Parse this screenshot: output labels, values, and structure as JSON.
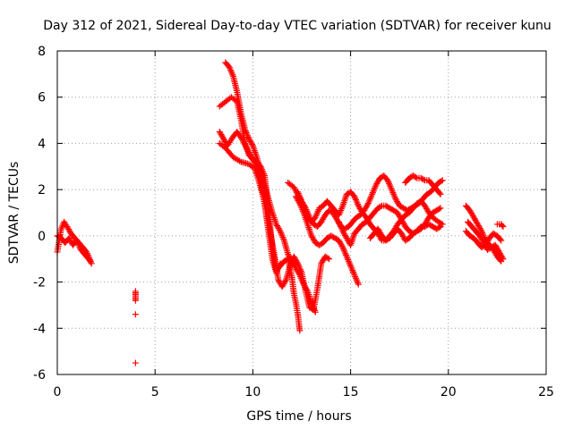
{
  "chart_data": {
    "type": "scatter",
    "title": "Day 312 of 2021, Sidereal Day-to-day VTEC variation (SDTVAR) for receiver kunu",
    "xlabel": "GPS time / hours",
    "ylabel": "SDTVAR / TECUs",
    "xlim": [
      0,
      25
    ],
    "ylim": [
      -6,
      8
    ],
    "xticks": [
      0,
      5,
      10,
      15,
      20,
      25
    ],
    "yticks": [
      -6,
      -4,
      -2,
      0,
      2,
      4,
      6,
      8
    ],
    "grid": true,
    "legend": "none",
    "marker": "+",
    "color": "#ff0000",
    "tracks": [
      [
        [
          0.0,
          -0.7
        ],
        [
          0.1,
          -0.2
        ],
        [
          0.2,
          0.3
        ],
        [
          0.35,
          0.6
        ],
        [
          0.5,
          0.4
        ],
        [
          0.7,
          0.1
        ],
        [
          0.9,
          -0.1
        ],
        [
          1.1,
          -0.3
        ],
        [
          1.3,
          -0.5
        ],
        [
          1.5,
          -0.7
        ],
        [
          1.7,
          -1.1
        ]
      ],
      [
        [
          0.0,
          0.0
        ],
        [
          0.2,
          -0.1
        ],
        [
          0.4,
          -0.3
        ],
        [
          0.6,
          -0.1
        ],
        [
          0.8,
          -0.4
        ],
        [
          1.0,
          -0.2
        ],
        [
          1.2,
          -0.6
        ],
        [
          1.4,
          -0.8
        ],
        [
          1.6,
          -1.0
        ],
        [
          1.75,
          -1.2
        ]
      ],
      [
        [
          4.0,
          -2.4
        ],
        [
          4.0,
          -2.6
        ],
        [
          4.0,
          -2.8
        ]
      ],
      [
        [
          4.0,
          -3.4
        ]
      ],
      [
        [
          4.0,
          -5.5
        ]
      ],
      [
        [
          8.6,
          7.5
        ],
        [
          8.8,
          7.3
        ],
        [
          9.0,
          6.9
        ],
        [
          9.2,
          6.2
        ],
        [
          9.4,
          5.3
        ],
        [
          9.6,
          4.6
        ],
        [
          9.8,
          4.2
        ],
        [
          10.0,
          3.9
        ],
        [
          10.2,
          3.4
        ],
        [
          10.4,
          2.8
        ],
        [
          10.6,
          2.2
        ],
        [
          10.8,
          1.6
        ],
        [
          11.0,
          1.0
        ],
        [
          11.2,
          0.5
        ],
        [
          11.4,
          0.2
        ],
        [
          11.6,
          -0.2
        ],
        [
          11.8,
          -0.8
        ],
        [
          12.0,
          -1.1
        ],
        [
          12.2,
          -1.4
        ],
        [
          12.4,
          -1.7
        ],
        [
          12.6,
          -2.1
        ],
        [
          12.8,
          -2.4
        ],
        [
          13.0,
          -2.9
        ],
        [
          13.2,
          -3.3
        ]
      ],
      [
        [
          8.3,
          5.6
        ],
        [
          8.6,
          5.8
        ],
        [
          8.9,
          6.0
        ],
        [
          9.2,
          5.8
        ],
        [
          9.4,
          5.0
        ],
        [
          9.6,
          4.0
        ],
        [
          9.8,
          3.5
        ],
        [
          10.0,
          3.3
        ],
        [
          10.2,
          3.2
        ],
        [
          10.4,
          3.0
        ],
        [
          10.6,
          2.6
        ],
        [
          10.8,
          1.2
        ],
        [
          11.0,
          -0.6
        ],
        [
          11.2,
          -1.5
        ],
        [
          11.4,
          -1.3
        ],
        [
          11.6,
          -1.1
        ],
        [
          11.8,
          -1.0
        ],
        [
          12.0,
          -1.8
        ],
        [
          12.1,
          -2.5
        ],
        [
          12.2,
          -2.9
        ],
        [
          12.3,
          -3.4
        ],
        [
          12.4,
          -4.1
        ]
      ],
      [
        [
          8.3,
          4.5
        ],
        [
          8.5,
          4.2
        ],
        [
          8.7,
          3.9
        ],
        [
          9.0,
          4.3
        ],
        [
          9.2,
          4.5
        ],
        [
          9.5,
          4.1
        ],
        [
          9.8,
          3.6
        ],
        [
          10.0,
          3.3
        ],
        [
          10.2,
          3.0
        ],
        [
          10.4,
          2.4
        ],
        [
          10.6,
          1.4
        ],
        [
          10.8,
          0.2
        ],
        [
          11.0,
          -1.0
        ],
        [
          11.2,
          -1.6
        ],
        [
          11.4,
          -1.2
        ]
      ],
      [
        [
          8.3,
          4.0
        ],
        [
          8.6,
          3.8
        ],
        [
          9.0,
          3.4
        ],
        [
          9.4,
          3.2
        ],
        [
          9.8,
          3.1
        ],
        [
          10.1,
          2.9
        ],
        [
          10.3,
          2.4
        ],
        [
          10.5,
          1.8
        ],
        [
          10.7,
          1.0
        ],
        [
          10.9,
          0.1
        ],
        [
          11.1,
          -0.8
        ],
        [
          11.3,
          -1.9
        ],
        [
          11.5,
          -2.2
        ],
        [
          11.7,
          -1.9
        ],
        [
          11.9,
          -1.3
        ],
        [
          12.1,
          -0.9
        ],
        [
          12.3,
          -1.2
        ],
        [
          12.5,
          -1.6
        ],
        [
          12.7,
          -2.4
        ],
        [
          12.9,
          -3.1
        ],
        [
          13.1,
          -3.2
        ],
        [
          13.3,
          -2.3
        ],
        [
          13.5,
          -1.2
        ],
        [
          13.7,
          -0.9
        ],
        [
          13.9,
          -1.0
        ]
      ],
      [
        [
          11.8,
          2.3
        ],
        [
          12.1,
          2.1
        ],
        [
          12.4,
          1.6
        ],
        [
          12.6,
          1.2
        ],
        [
          12.8,
          0.8
        ],
        [
          13.0,
          0.6
        ],
        [
          13.2,
          0.8
        ],
        [
          13.4,
          1.2
        ],
        [
          13.6,
          1.3
        ],
        [
          13.8,
          1.5
        ],
        [
          14.0,
          1.3
        ],
        [
          14.2,
          1.1
        ],
        [
          14.4,
          0.9
        ],
        [
          14.6,
          1.3
        ],
        [
          14.8,
          1.8
        ],
        [
          15.0,
          1.9
        ],
        [
          15.2,
          1.7
        ],
        [
          15.4,
          1.3
        ],
        [
          15.6,
          1.0
        ],
        [
          15.8,
          0.8
        ],
        [
          16.0,
          0.5
        ],
        [
          16.2,
          0.3
        ],
        [
          16.4,
          0.1
        ],
        [
          16.6,
          -0.2
        ],
        [
          16.8,
          -0.2
        ],
        [
          17.0,
          0.0
        ],
        [
          17.2,
          0.2
        ],
        [
          17.4,
          0.5
        ],
        [
          17.6,
          0.7
        ],
        [
          17.8,
          0.9
        ],
        [
          18.0,
          1.0
        ],
        [
          18.2,
          1.2
        ],
        [
          18.4,
          1.4
        ],
        [
          18.6,
          1.5
        ],
        [
          18.8,
          1.3
        ],
        [
          19.0,
          1.0
        ],
        [
          19.2,
          0.8
        ],
        [
          19.5,
          0.6
        ],
        [
          19.7,
          0.5
        ]
      ],
      [
        [
          12.3,
          1.9
        ],
        [
          12.5,
          1.5
        ],
        [
          12.7,
          1.2
        ],
        [
          12.9,
          0.8
        ],
        [
          13.1,
          0.5
        ],
        [
          13.3,
          0.4
        ],
        [
          13.5,
          0.6
        ],
        [
          13.7,
          0.9
        ],
        [
          13.9,
          1.1
        ],
        [
          14.1,
          1.0
        ],
        [
          14.3,
          0.7
        ],
        [
          14.5,
          0.4
        ],
        [
          14.7,
          0.3
        ],
        [
          14.9,
          0.4
        ],
        [
          15.1,
          0.6
        ],
        [
          15.3,
          0.8
        ],
        [
          15.5,
          0.9
        ],
        [
          15.7,
          1.1
        ],
        [
          15.9,
          1.4
        ],
        [
          16.1,
          1.8
        ],
        [
          16.3,
          2.2
        ],
        [
          16.5,
          2.5
        ],
        [
          16.7,
          2.6
        ],
        [
          16.9,
          2.4
        ],
        [
          17.1,
          2.0
        ],
        [
          17.3,
          1.6
        ],
        [
          17.5,
          1.3
        ],
        [
          17.7,
          1.2
        ],
        [
          17.9,
          1.1
        ],
        [
          18.1,
          1.2
        ],
        [
          18.3,
          1.3
        ],
        [
          18.5,
          1.4
        ],
        [
          18.7,
          1.6
        ],
        [
          18.9,
          1.8
        ],
        [
          19.1,
          1.9
        ],
        [
          19.3,
          2.1
        ],
        [
          19.5,
          2.3
        ],
        [
          19.7,
          2.4
        ]
      ],
      [
        [
          12.2,
          1.7
        ],
        [
          12.4,
          1.4
        ],
        [
          12.6,
          1.0
        ],
        [
          12.8,
          0.5
        ],
        [
          13.0,
          0.0
        ],
        [
          13.2,
          -0.3
        ],
        [
          13.4,
          -0.4
        ],
        [
          13.6,
          -0.3
        ],
        [
          13.8,
          -0.1
        ],
        [
          14.0,
          0.0
        ],
        [
          14.2,
          -0.1
        ],
        [
          14.4,
          -0.2
        ],
        [
          14.6,
          -0.5
        ],
        [
          14.8,
          -0.9
        ],
        [
          15.0,
          -1.3
        ],
        [
          15.2,
          -1.7
        ],
        [
          15.4,
          -2.1
        ]
      ],
      [
        [
          14.4,
          0.6
        ],
        [
          14.6,
          0.2
        ],
        [
          14.8,
          -0.1
        ],
        [
          15.0,
          -0.4
        ],
        [
          15.2,
          0.1
        ],
        [
          15.4,
          0.3
        ],
        [
          15.6,
          0.5
        ],
        [
          15.8,
          0.6
        ],
        [
          16.0,
          0.8
        ],
        [
          16.2,
          1.0
        ],
        [
          16.4,
          1.2
        ],
        [
          16.6,
          1.3
        ],
        [
          16.8,
          1.3
        ],
        [
          17.0,
          1.2
        ],
        [
          17.2,
          1.1
        ],
        [
          17.4,
          1.0
        ],
        [
          17.6,
          0.7
        ],
        [
          17.8,
          0.4
        ],
        [
          18.0,
          0.2
        ],
        [
          18.2,
          0.1
        ],
        [
          18.4,
          0.2
        ],
        [
          18.6,
          0.3
        ],
        [
          18.8,
          0.5
        ],
        [
          19.0,
          0.8
        ],
        [
          19.2,
          1.0
        ],
        [
          19.4,
          1.1
        ],
        [
          19.6,
          1.2
        ]
      ],
      [
        [
          17.8,
          2.3
        ],
        [
          18.0,
          2.5
        ],
        [
          18.2,
          2.6
        ],
        [
          18.4,
          2.5
        ],
        [
          18.6,
          2.5
        ],
        [
          18.8,
          2.4
        ],
        [
          19.0,
          2.4
        ],
        [
          19.2,
          2.2
        ],
        [
          19.4,
          2.0
        ],
        [
          19.6,
          1.8
        ]
      ],
      [
        [
          16.0,
          -0.1
        ],
        [
          16.2,
          0.1
        ],
        [
          16.4,
          0.3
        ],
        [
          16.6,
          0.0
        ],
        [
          16.8,
          -0.2
        ],
        [
          17.0,
          -0.1
        ],
        [
          17.2,
          0.1
        ],
        [
          17.4,
          0.3
        ],
        [
          17.6,
          0.1
        ],
        [
          17.8,
          -0.2
        ],
        [
          18.0,
          -0.1
        ],
        [
          18.2,
          0.1
        ],
        [
          18.4,
          0.2
        ],
        [
          18.6,
          0.4
        ],
        [
          18.8,
          0.4
        ],
        [
          19.0,
          0.5
        ],
        [
          19.2,
          0.4
        ],
        [
          19.4,
          0.3
        ],
        [
          19.6,
          0.4
        ]
      ],
      [
        [
          20.9,
          1.3
        ],
        [
          21.1,
          1.1
        ],
        [
          21.3,
          0.8
        ],
        [
          21.5,
          0.5
        ],
        [
          21.7,
          0.2
        ],
        [
          21.9,
          -0.2
        ],
        [
          22.1,
          -0.4
        ],
        [
          22.3,
          -0.6
        ],
        [
          22.5,
          -0.9
        ],
        [
          22.7,
          -1.1
        ]
      ],
      [
        [
          20.9,
          0.2
        ],
        [
          21.1,
          0.0
        ],
        [
          21.3,
          -0.1
        ],
        [
          21.5,
          -0.3
        ],
        [
          21.7,
          -0.5
        ],
        [
          21.9,
          -0.4
        ],
        [
          22.1,
          -0.1
        ],
        [
          22.3,
          0.1
        ],
        [
          22.5,
          0.0
        ],
        [
          22.7,
          -0.2
        ]
      ],
      [
        [
          21.0,
          0.6
        ],
        [
          21.2,
          0.4
        ],
        [
          21.4,
          0.2
        ],
        [
          21.6,
          0.0
        ],
        [
          21.8,
          -0.3
        ],
        [
          22.0,
          -0.6
        ],
        [
          22.2,
          -0.5
        ],
        [
          22.4,
          -0.4
        ],
        [
          22.6,
          -0.7
        ],
        [
          22.8,
          -1.0
        ]
      ],
      [
        [
          22.5,
          0.5
        ],
        [
          22.7,
          0.5
        ],
        [
          22.8,
          0.4
        ]
      ]
    ]
  }
}
